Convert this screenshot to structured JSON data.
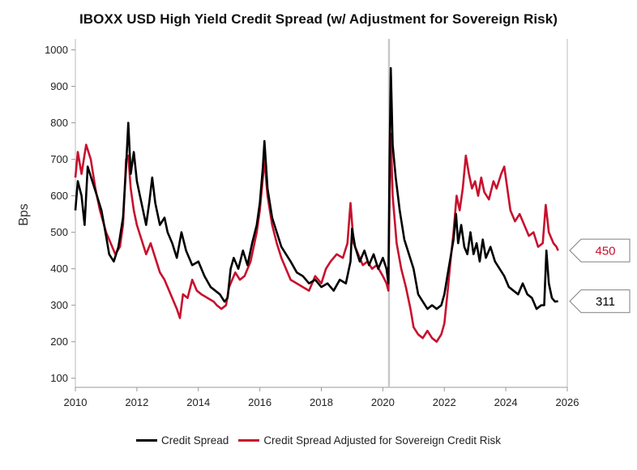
{
  "chart_data": {
    "type": "line",
    "title": "IBOXX USD High Yield Credit Spread (w/ Adjustment for Sovereign Risk)",
    "xlabel": "",
    "ylabel": "Bps",
    "xlim": [
      2010,
      2026
    ],
    "ylim": [
      75,
      1030
    ],
    "x_ticks": [
      "2010",
      "2012",
      "2014",
      "2016",
      "2018",
      "2020",
      "2022",
      "2024",
      "2026"
    ],
    "y_ticks": [
      "100",
      "200",
      "300",
      "400",
      "500",
      "600",
      "700",
      "800",
      "900",
      "1000"
    ],
    "vline_x": 2020.2,
    "series": [
      {
        "name": "Credit Spread",
        "color": "#000000",
        "points": [
          [
            2010.0,
            560
          ],
          [
            2010.08,
            640
          ],
          [
            2010.2,
            600
          ],
          [
            2010.3,
            520
          ],
          [
            2010.4,
            680
          ],
          [
            2010.55,
            640
          ],
          [
            2010.7,
            600
          ],
          [
            2010.85,
            560
          ],
          [
            2011.0,
            490
          ],
          [
            2011.1,
            440
          ],
          [
            2011.25,
            420
          ],
          [
            2011.4,
            460
          ],
          [
            2011.55,
            540
          ],
          [
            2011.65,
            680
          ],
          [
            2011.72,
            800
          ],
          [
            2011.8,
            660
          ],
          [
            2011.9,
            720
          ],
          [
            2012.0,
            640
          ],
          [
            2012.1,
            600
          ],
          [
            2012.2,
            560
          ],
          [
            2012.3,
            520
          ],
          [
            2012.4,
            580
          ],
          [
            2012.5,
            650
          ],
          [
            2012.6,
            580
          ],
          [
            2012.75,
            520
          ],
          [
            2012.9,
            540
          ],
          [
            2013.0,
            500
          ],
          [
            2013.15,
            470
          ],
          [
            2013.3,
            430
          ],
          [
            2013.45,
            500
          ],
          [
            2013.6,
            450
          ],
          [
            2013.8,
            410
          ],
          [
            2014.0,
            420
          ],
          [
            2014.2,
            380
          ],
          [
            2014.4,
            350
          ],
          [
            2014.55,
            340
          ],
          [
            2014.7,
            330
          ],
          [
            2014.85,
            310
          ],
          [
            2014.95,
            320
          ],
          [
            2015.05,
            400
          ],
          [
            2015.15,
            430
          ],
          [
            2015.3,
            400
          ],
          [
            2015.45,
            450
          ],
          [
            2015.6,
            410
          ],
          [
            2015.75,
            470
          ],
          [
            2015.9,
            520
          ],
          [
            2016.0,
            580
          ],
          [
            2016.1,
            680
          ],
          [
            2016.15,
            750
          ],
          [
            2016.25,
            620
          ],
          [
            2016.4,
            540
          ],
          [
            2016.55,
            500
          ],
          [
            2016.7,
            460
          ],
          [
            2016.85,
            440
          ],
          [
            2017.0,
            420
          ],
          [
            2017.2,
            390
          ],
          [
            2017.4,
            380
          ],
          [
            2017.6,
            360
          ],
          [
            2017.8,
            370
          ],
          [
            2018.0,
            350
          ],
          [
            2018.2,
            360
          ],
          [
            2018.4,
            340
          ],
          [
            2018.6,
            370
          ],
          [
            2018.8,
            360
          ],
          [
            2018.95,
            420
          ],
          [
            2019.0,
            510
          ],
          [
            2019.1,
            460
          ],
          [
            2019.25,
            420
          ],
          [
            2019.4,
            450
          ],
          [
            2019.55,
            410
          ],
          [
            2019.7,
            440
          ],
          [
            2019.85,
            400
          ],
          [
            2020.0,
            430
          ],
          [
            2020.12,
            400
          ],
          [
            2020.18,
            360
          ],
          [
            2020.22,
            700
          ],
          [
            2020.26,
            950
          ],
          [
            2020.32,
            740
          ],
          [
            2020.42,
            650
          ],
          [
            2020.55,
            560
          ],
          [
            2020.7,
            480
          ],
          [
            2020.85,
            440
          ],
          [
            2021.0,
            400
          ],
          [
            2021.15,
            330
          ],
          [
            2021.3,
            310
          ],
          [
            2021.45,
            290
          ],
          [
            2021.6,
            300
          ],
          [
            2021.75,
            290
          ],
          [
            2021.9,
            300
          ],
          [
            2022.0,
            330
          ],
          [
            2022.1,
            380
          ],
          [
            2022.2,
            430
          ],
          [
            2022.3,
            480
          ],
          [
            2022.38,
            550
          ],
          [
            2022.45,
            470
          ],
          [
            2022.55,
            520
          ],
          [
            2022.65,
            460
          ],
          [
            2022.75,
            440
          ],
          [
            2022.85,
            500
          ],
          [
            2022.95,
            440
          ],
          [
            2023.05,
            470
          ],
          [
            2023.15,
            420
          ],
          [
            2023.25,
            480
          ],
          [
            2023.35,
            430
          ],
          [
            2023.5,
            460
          ],
          [
            2023.65,
            420
          ],
          [
            2023.8,
            400
          ],
          [
            2023.95,
            380
          ],
          [
            2024.1,
            350
          ],
          [
            2024.25,
            340
          ],
          [
            2024.4,
            330
          ],
          [
            2024.55,
            360
          ],
          [
            2024.7,
            330
          ],
          [
            2024.85,
            320
          ],
          [
            2025.0,
            290
          ],
          [
            2025.15,
            300
          ],
          [
            2025.25,
            300
          ],
          [
            2025.32,
            450
          ],
          [
            2025.4,
            360
          ],
          [
            2025.5,
            320
          ],
          [
            2025.6,
            310
          ],
          [
            2025.7,
            311
          ]
        ]
      },
      {
        "name": "Credit Spread Adjusted for Sovereign Credit Risk",
        "color": "#c8102e",
        "points": [
          [
            2010.0,
            650
          ],
          [
            2010.08,
            720
          ],
          [
            2010.2,
            660
          ],
          [
            2010.35,
            740
          ],
          [
            2010.5,
            700
          ],
          [
            2010.65,
            620
          ],
          [
            2010.8,
            560
          ],
          [
            2011.0,
            500
          ],
          [
            2011.15,
            470
          ],
          [
            2011.3,
            440
          ],
          [
            2011.45,
            460
          ],
          [
            2011.55,
            520
          ],
          [
            2011.65,
            700
          ],
          [
            2011.72,
            710
          ],
          [
            2011.8,
            620
          ],
          [
            2011.9,
            560
          ],
          [
            2012.0,
            520
          ],
          [
            2012.15,
            480
          ],
          [
            2012.3,
            440
          ],
          [
            2012.45,
            470
          ],
          [
            2012.6,
            430
          ],
          [
            2012.75,
            390
          ],
          [
            2012.9,
            370
          ],
          [
            2013.0,
            350
          ],
          [
            2013.15,
            320
          ],
          [
            2013.3,
            290
          ],
          [
            2013.4,
            265
          ],
          [
            2013.5,
            330
          ],
          [
            2013.65,
            320
          ],
          [
            2013.8,
            370
          ],
          [
            2013.95,
            340
          ],
          [
            2014.1,
            330
          ],
          [
            2014.3,
            320
          ],
          [
            2014.5,
            310
          ],
          [
            2014.6,
            300
          ],
          [
            2014.75,
            290
          ],
          [
            2014.9,
            300
          ],
          [
            2015.0,
            350
          ],
          [
            2015.2,
            390
          ],
          [
            2015.35,
            370
          ],
          [
            2015.5,
            380
          ],
          [
            2015.7,
            420
          ],
          [
            2015.9,
            500
          ],
          [
            2016.0,
            560
          ],
          [
            2016.1,
            650
          ],
          [
            2016.15,
            700
          ],
          [
            2016.25,
            600
          ],
          [
            2016.4,
            520
          ],
          [
            2016.55,
            470
          ],
          [
            2016.7,
            430
          ],
          [
            2016.85,
            400
          ],
          [
            2017.0,
            370
          ],
          [
            2017.2,
            360
          ],
          [
            2017.4,
            350
          ],
          [
            2017.6,
            340
          ],
          [
            2017.8,
            380
          ],
          [
            2018.0,
            360
          ],
          [
            2018.15,
            400
          ],
          [
            2018.3,
            420
          ],
          [
            2018.5,
            440
          ],
          [
            2018.7,
            430
          ],
          [
            2018.85,
            470
          ],
          [
            2018.95,
            580
          ],
          [
            2019.05,
            470
          ],
          [
            2019.2,
            440
          ],
          [
            2019.35,
            410
          ],
          [
            2019.5,
            420
          ],
          [
            2019.65,
            400
          ],
          [
            2019.8,
            410
          ],
          [
            2020.0,
            380
          ],
          [
            2020.12,
            360
          ],
          [
            2020.18,
            340
          ],
          [
            2020.22,
            600
          ],
          [
            2020.26,
            770
          ],
          [
            2020.32,
            600
          ],
          [
            2020.45,
            470
          ],
          [
            2020.6,
            400
          ],
          [
            2020.75,
            350
          ],
          [
            2020.9,
            290
          ],
          [
            2021.0,
            240
          ],
          [
            2021.15,
            220
          ],
          [
            2021.3,
            210
          ],
          [
            2021.45,
            230
          ],
          [
            2021.6,
            210
          ],
          [
            2021.75,
            200
          ],
          [
            2021.9,
            220
          ],
          [
            2022.0,
            250
          ],
          [
            2022.1,
            330
          ],
          [
            2022.2,
            420
          ],
          [
            2022.3,
            500
          ],
          [
            2022.4,
            600
          ],
          [
            2022.5,
            560
          ],
          [
            2022.6,
            620
          ],
          [
            2022.7,
            710
          ],
          [
            2022.8,
            660
          ],
          [
            2022.9,
            620
          ],
          [
            2023.0,
            640
          ],
          [
            2023.1,
            600
          ],
          [
            2023.2,
            650
          ],
          [
            2023.3,
            610
          ],
          [
            2023.45,
            590
          ],
          [
            2023.6,
            640
          ],
          [
            2023.7,
            620
          ],
          [
            2023.85,
            660
          ],
          [
            2023.95,
            680
          ],
          [
            2024.05,
            620
          ],
          [
            2024.15,
            560
          ],
          [
            2024.3,
            530
          ],
          [
            2024.45,
            550
          ],
          [
            2024.6,
            520
          ],
          [
            2024.75,
            490
          ],
          [
            2024.9,
            500
          ],
          [
            2025.05,
            460
          ],
          [
            2025.2,
            470
          ],
          [
            2025.3,
            575
          ],
          [
            2025.4,
            500
          ],
          [
            2025.55,
            470
          ],
          [
            2025.65,
            460
          ],
          [
            2025.7,
            450
          ]
        ]
      }
    ]
  },
  "callouts": [
    {
      "label": "450",
      "y_value": 450,
      "color": "#c8102e"
    },
    {
      "label": "311",
      "y_value": 311,
      "color": "#000000"
    }
  ],
  "legend": {
    "items": [
      {
        "label": "Credit Spread",
        "color": "#000000"
      },
      {
        "label": "Credit Spread Adjusted for Sovereign Credit Risk",
        "color": "#c8102e"
      }
    ]
  }
}
